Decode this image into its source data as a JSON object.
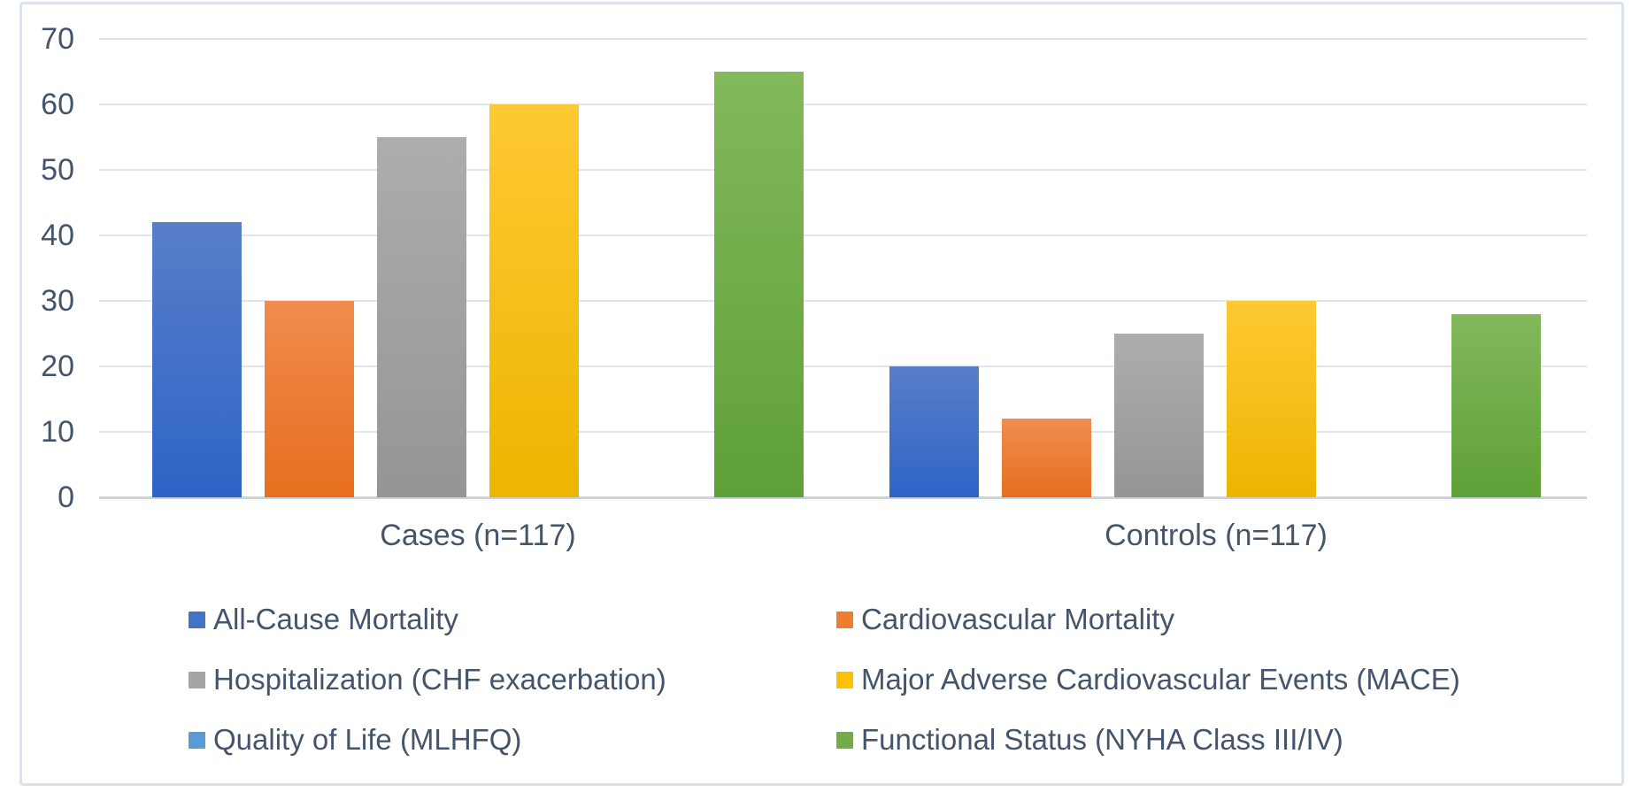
{
  "chart_data": {
    "type": "bar",
    "title": "",
    "categories": [
      "Cases (n=117)",
      "Controls (n=117)"
    ],
    "series": [
      {
        "name": "All-Cause Mortality",
        "color": "#4472C4",
        "values": [
          42,
          20
        ]
      },
      {
        "name": "Cardiovascular Mortality",
        "color": "#ED7D31",
        "values": [
          30,
          12
        ]
      },
      {
        "name": "Hospitalization (CHF exacerbation)",
        "color": "#A5A5A5",
        "values": [
          55,
          25
        ]
      },
      {
        "name": "Major Adverse Cardiovascular Events (MACE)",
        "color": "#FFC000",
        "values": [
          60,
          30
        ]
      },
      {
        "name": "Quality of Life (MLHFQ)",
        "color": "#5B9BD5",
        "values": [
          0,
          0
        ]
      },
      {
        "name": "Functional Status (NYHA Class III/IV)",
        "color": "#70AD47",
        "values": [
          65,
          28
        ]
      }
    ],
    "y_axis": {
      "min": 0,
      "max": 70,
      "step": 10,
      "ticks": [
        0,
        10,
        20,
        30,
        40,
        50,
        60,
        70
      ]
    },
    "grid": true,
    "legend_position": "bottom",
    "colors": {
      "text": "#44546A",
      "gridline": "#E1E6EE",
      "axis_line": "#CBD3DE",
      "frame_border": "#DCE2EB",
      "background": "#FFFFFF"
    }
  }
}
